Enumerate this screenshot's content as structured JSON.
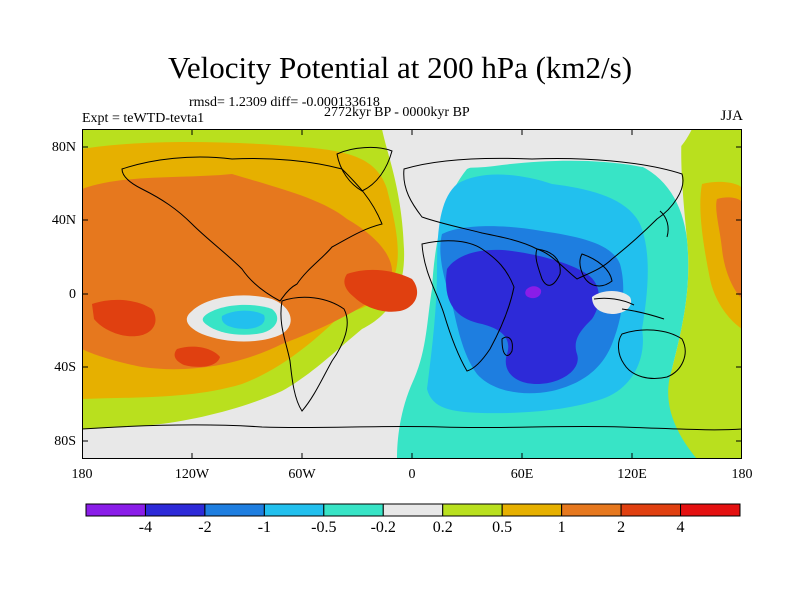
{
  "header": {
    "title": "Velocity Potential at 200 hPa (km2/s)",
    "stats": "rmsd= 1.2309 diff= -0.000133618",
    "expt": "Expt = teWTD-tevta1",
    "period": "2772kyr BP - 0000kyr BP",
    "season": "JJA"
  },
  "axes": {
    "y_ticks": [
      "80N",
      "40N",
      "0",
      "40S",
      "80S"
    ],
    "x_ticks": [
      "180",
      "120W",
      "60W",
      "0",
      "60E",
      "120E",
      "180"
    ]
  },
  "colorbar": {
    "colors": [
      "#8a1de8",
      "#2d2ad8",
      "#1e7ee0",
      "#22c0ee",
      "#38e4c6",
      "#e8e8e8",
      "#b9e01e",
      "#e6b000",
      "#e6781e",
      "#e04010",
      "#e41010"
    ],
    "labels": [
      "-4",
      "-2",
      "-1",
      "-0.5",
      "-0.2",
      "0.2",
      "0.5",
      "1",
      "2",
      "4"
    ]
  },
  "map_data": {
    "projection": "cylindrical equidistant",
    "lon_range": [
      -180,
      180
    ],
    "lat_range": [
      -90,
      90
    ],
    "field": "velocity potential difference at 200 hPa",
    "units": "km2/s"
  }
}
